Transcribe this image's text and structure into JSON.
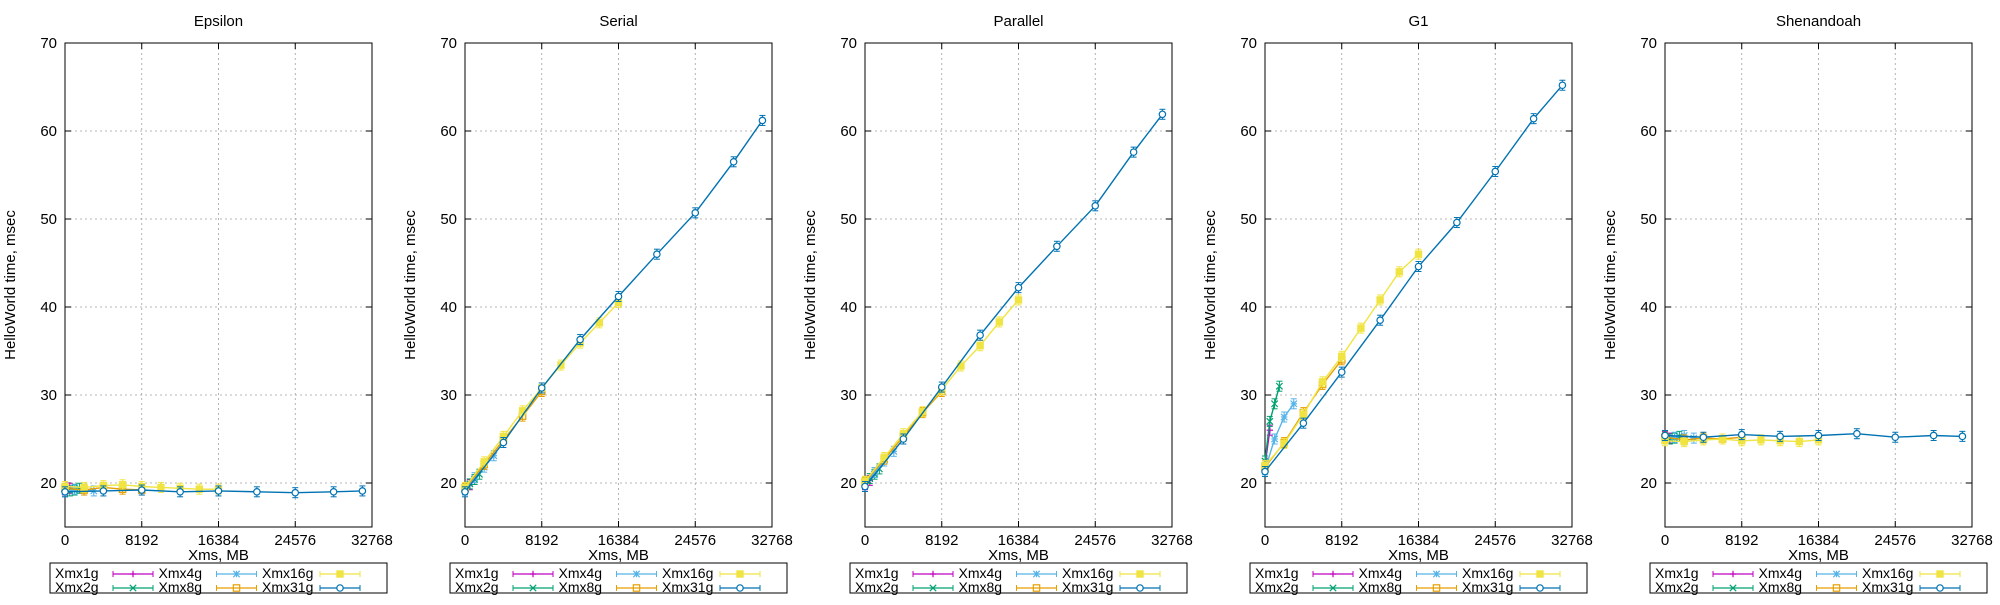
{
  "chart_data": [
    {
      "type": "line",
      "title": "Epsilon",
      "xlabel": "Xms, MB",
      "ylabel": "HelloWorld time, msec",
      "xlim": [
        0,
        32768
      ],
      "ylim": [
        15,
        70
      ],
      "xticks": [
        0,
        8192,
        16384,
        24576,
        32768
      ],
      "yticks": [
        20,
        30,
        40,
        50,
        60,
        70
      ],
      "grid": true,
      "legend_position": "bottom",
      "series": [
        {
          "name": "Xmx1g",
          "color": "#c000c0",
          "marker": "plus",
          "x": [
            0,
            512
          ],
          "y": [
            19.2,
            19.4
          ]
        },
        {
          "name": "Xmx2g",
          "color": "#00a070",
          "marker": "cross",
          "x": [
            0,
            512,
            1024,
            1536
          ],
          "y": [
            19.3,
            19.1,
            19.2,
            19.4
          ]
        },
        {
          "name": "Xmx4g",
          "color": "#56b4e9",
          "marker": "star",
          "x": [
            0,
            1024,
            2048,
            3072
          ],
          "y": [
            19.0,
            19.3,
            19.2,
            19.1
          ]
        },
        {
          "name": "Xmx8g",
          "color": "#e69f00",
          "marker": "square",
          "x": [
            0,
            2048,
            4096,
            6144,
            8192
          ],
          "y": [
            19.4,
            19.2,
            19.5,
            19.3,
            19.2
          ]
        },
        {
          "name": "Xmx16g",
          "color": "#f0e442",
          "marker": "filled-square",
          "x": [
            0,
            2048,
            4096,
            6144,
            8192,
            10240,
            12288,
            14336,
            16384
          ],
          "y": [
            19.6,
            19.5,
            19.7,
            19.8,
            19.6,
            19.5,
            19.4,
            19.3,
            19.3
          ]
        },
        {
          "name": "Xmx31g",
          "color": "#0072b2",
          "marker": "circle",
          "x": [
            0,
            4096,
            8192,
            12288,
            16384,
            20480,
            24576,
            28672,
            31744
          ],
          "y": [
            19.0,
            19.1,
            19.2,
            19.0,
            19.1,
            19.0,
            18.9,
            19.0,
            19.1
          ]
        }
      ]
    },
    {
      "type": "line",
      "title": "Serial",
      "xlabel": "Xms, MB",
      "ylabel": "HelloWorld time, msec",
      "xlim": [
        0,
        32768
      ],
      "ylim": [
        15,
        70
      ],
      "xticks": [
        0,
        8192,
        16384,
        24576,
        32768
      ],
      "yticks": [
        20,
        30,
        40,
        50,
        60,
        70
      ],
      "grid": true,
      "legend_position": "bottom",
      "series": [
        {
          "name": "Xmx1g",
          "color": "#c000c0",
          "marker": "plus",
          "x": [
            0,
            512
          ],
          "y": [
            19.2,
            19.8
          ]
        },
        {
          "name": "Xmx2g",
          "color": "#00a070",
          "marker": "cross",
          "x": [
            0,
            512,
            1024,
            1536
          ],
          "y": [
            19.3,
            19.9,
            20.4,
            21.0
          ]
        },
        {
          "name": "Xmx4g",
          "color": "#56b4e9",
          "marker": "star",
          "x": [
            0,
            1024,
            2048,
            3072
          ],
          "y": [
            19.2,
            20.6,
            21.8,
            23.1
          ]
        },
        {
          "name": "Xmx8g",
          "color": "#e69f00",
          "marker": "square",
          "x": [
            0,
            2048,
            4096,
            6144,
            8192
          ],
          "y": [
            19.4,
            22.1,
            24.9,
            27.6,
            30.4
          ]
        },
        {
          "name": "Xmx16g",
          "color": "#f0e442",
          "marker": "filled-square",
          "x": [
            0,
            2048,
            4096,
            6144,
            8192,
            10240,
            12288,
            14336,
            16384
          ],
          "y": [
            19.5,
            22.4,
            25.3,
            28.2,
            30.8,
            33.4,
            35.9,
            38.2,
            40.5
          ]
        },
        {
          "name": "Xmx31g",
          "color": "#0072b2",
          "marker": "circle",
          "x": [
            0,
            4096,
            8192,
            12288,
            16384,
            20480,
            24576,
            28672,
            31744
          ],
          "y": [
            19.0,
            24.6,
            30.8,
            36.3,
            41.2,
            46.0,
            50.7,
            56.5,
            61.2
          ]
        }
      ]
    },
    {
      "type": "line",
      "title": "Parallel",
      "xlabel": "Xms, MB",
      "ylabel": "HelloWorld time, msec",
      "xlim": [
        0,
        32768
      ],
      "ylim": [
        15,
        70
      ],
      "xticks": [
        0,
        8192,
        16384,
        24576,
        32768
      ],
      "yticks": [
        20,
        30,
        40,
        50,
        60,
        70
      ],
      "grid": true,
      "legend_position": "bottom",
      "series": [
        {
          "name": "Xmx1g",
          "color": "#c000c0",
          "marker": "plus",
          "x": [
            0,
            512
          ],
          "y": [
            19.8,
            20.3
          ]
        },
        {
          "name": "Xmx2g",
          "color": "#00a070",
          "marker": "cross",
          "x": [
            0,
            512,
            1024,
            1536
          ],
          "y": [
            19.9,
            20.5,
            21.0,
            21.6
          ]
        },
        {
          "name": "Xmx4g",
          "color": "#56b4e9",
          "marker": "star",
          "x": [
            0,
            1024,
            2048,
            3072
          ],
          "y": [
            20.0,
            21.2,
            22.5,
            23.6
          ]
        },
        {
          "name": "Xmx8g",
          "color": "#e69f00",
          "marker": "square",
          "x": [
            0,
            2048,
            4096,
            6144,
            8192
          ],
          "y": [
            20.1,
            22.7,
            25.3,
            28.0,
            30.4
          ]
        },
        {
          "name": "Xmx16g",
          "color": "#f0e442",
          "marker": "filled-square",
          "x": [
            0,
            2048,
            4096,
            6144,
            8192,
            10240,
            12288,
            14336,
            16384
          ],
          "y": [
            20.2,
            22.9,
            25.6,
            28.1,
            30.6,
            33.3,
            35.6,
            38.3,
            40.8
          ]
        },
        {
          "name": "Xmx31g",
          "color": "#0072b2",
          "marker": "circle",
          "x": [
            0,
            4096,
            8192,
            12288,
            16384,
            20480,
            24576,
            28672,
            31744
          ],
          "y": [
            19.6,
            25.0,
            30.9,
            36.8,
            42.2,
            46.9,
            51.5,
            57.6,
            61.9
          ]
        }
      ]
    },
    {
      "type": "line",
      "title": "G1",
      "xlabel": "Xms, MB",
      "ylabel": "HelloWorld time, msec",
      "xlim": [
        0,
        32768
      ],
      "ylim": [
        15,
        70
      ],
      "xticks": [
        0,
        8192,
        16384,
        24576,
        32768
      ],
      "yticks": [
        20,
        30,
        40,
        50,
        60,
        70
      ],
      "grid": true,
      "legend_position": "bottom",
      "series": [
        {
          "name": "Xmx1g",
          "color": "#c000c0",
          "marker": "plus",
          "x": [
            0,
            512
          ],
          "y": [
            22.0,
            26.0
          ]
        },
        {
          "name": "Xmx2g",
          "color": "#00a070",
          "marker": "cross",
          "x": [
            0,
            512,
            1024,
            1536
          ],
          "y": [
            22.5,
            27.0,
            29.0,
            31.0
          ]
        },
        {
          "name": "Xmx4g",
          "color": "#56b4e9",
          "marker": "star",
          "x": [
            0,
            1024,
            2048,
            3072
          ],
          "y": [
            21.5,
            25.0,
            27.5,
            29.0
          ]
        },
        {
          "name": "Xmx8g",
          "color": "#e69f00",
          "marker": "square",
          "x": [
            0,
            2048,
            4096,
            6144,
            8192
          ],
          "y": [
            21.8,
            24.6,
            28.0,
            31.2,
            34.0
          ]
        },
        {
          "name": "Xmx16g",
          "color": "#f0e442",
          "marker": "filled-square",
          "x": [
            0,
            2048,
            4096,
            6144,
            8192,
            10240,
            12288,
            14336,
            16384
          ],
          "y": [
            22.0,
            24.5,
            27.8,
            31.5,
            34.4,
            37.6,
            40.8,
            44.0,
            46.0
          ]
        },
        {
          "name": "Xmx31g",
          "color": "#0072b2",
          "marker": "circle",
          "x": [
            0,
            4096,
            8192,
            12288,
            16384,
            20480,
            24576,
            28672,
            31744
          ],
          "y": [
            21.3,
            26.8,
            32.6,
            38.5,
            44.6,
            49.6,
            55.4,
            61.4,
            65.2
          ]
        }
      ]
    },
    {
      "type": "line",
      "title": "Shenandoah",
      "xlabel": "Xms, MB",
      "ylabel": "HelloWorld time, msec",
      "xlim": [
        0,
        32768
      ],
      "ylim": [
        15,
        70
      ],
      "xticks": [
        0,
        8192,
        16384,
        24576,
        32768
      ],
      "yticks": [
        20,
        30,
        40,
        50,
        60,
        70
      ],
      "grid": true,
      "legend_position": "bottom",
      "series": [
        {
          "name": "Xmx1g",
          "color": "#c000c0",
          "marker": "plus",
          "x": [
            0,
            512
          ],
          "y": [
            25.3,
            25.1
          ]
        },
        {
          "name": "Xmx2g",
          "color": "#00a070",
          "marker": "cross",
          "x": [
            0,
            512,
            1024,
            1536
          ],
          "y": [
            25.2,
            25.0,
            25.1,
            25.3
          ]
        },
        {
          "name": "Xmx4g",
          "color": "#56b4e9",
          "marker": "star",
          "x": [
            0,
            1024,
            2048,
            3072
          ],
          "y": [
            25.0,
            25.2,
            25.4,
            25.1
          ]
        },
        {
          "name": "Xmx8g",
          "color": "#e69f00",
          "marker": "square",
          "x": [
            0,
            2048,
            4096,
            6144,
            8192
          ],
          "y": [
            25.2,
            24.9,
            25.1,
            25.0,
            25.2
          ]
        },
        {
          "name": "Xmx16g",
          "color": "#f0e442",
          "marker": "filled-square",
          "x": [
            0,
            2048,
            4096,
            6144,
            8192,
            10240,
            12288,
            14336,
            16384
          ],
          "y": [
            24.8,
            24.7,
            24.9,
            25.0,
            24.8,
            24.9,
            24.8,
            24.7,
            24.9
          ]
        },
        {
          "name": "Xmx31g",
          "color": "#0072b2",
          "marker": "circle",
          "x": [
            0,
            4096,
            8192,
            12288,
            16384,
            20480,
            24576,
            28672,
            31744
          ],
          "y": [
            25.4,
            25.2,
            25.5,
            25.3,
            25.4,
            25.6,
            25.2,
            25.4,
            25.3
          ]
        }
      ]
    }
  ]
}
